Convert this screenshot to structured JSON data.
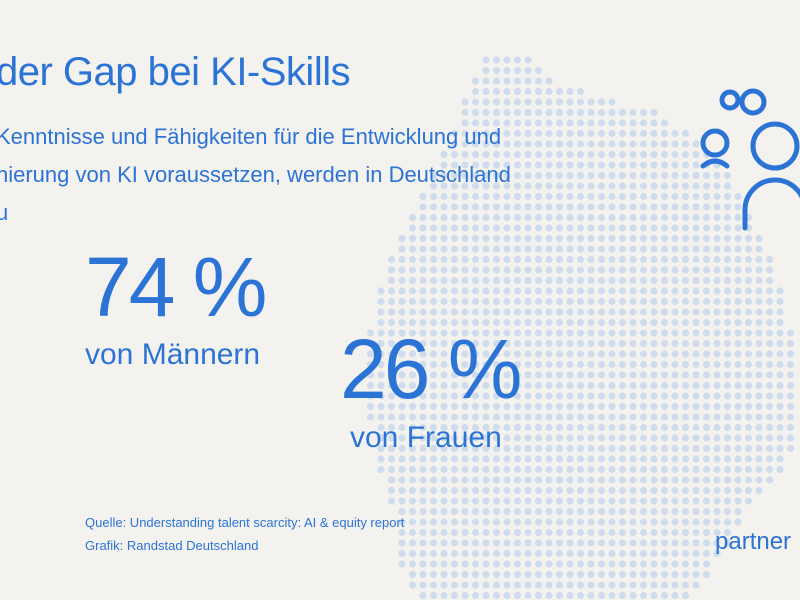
{
  "title": "der Gap bei KI-Skills",
  "subtitle_lines": [
    "Kenntnisse und Fähigkeiten für die Entwicklung und",
    "nierung von KI voraussetzen, werden in Deutschland",
    "u"
  ],
  "chart_data": {
    "type": "other",
    "values": [
      {
        "value": 74,
        "unit": "%",
        "label": "von Männern"
      },
      {
        "value": 26,
        "unit": "%",
        "label": "von Frauen"
      }
    ]
  },
  "stats": {
    "men": {
      "value": "74 %",
      "label": "von Männern"
    },
    "women": {
      "value": "26 %",
      "label": "von Frauen"
    }
  },
  "footer": {
    "source": "Quelle: Understanding talent scarcity: AI & equity report",
    "credit": "Grafik: Randstad Deutschland"
  },
  "brand": {
    "partner_text": "partner"
  },
  "icons": {
    "people": "people-icon",
    "map": "germany-dot-map"
  },
  "colors": {
    "accent": "#2b74d6",
    "background": "#f4f2ee",
    "dots": "#cfdcee"
  }
}
